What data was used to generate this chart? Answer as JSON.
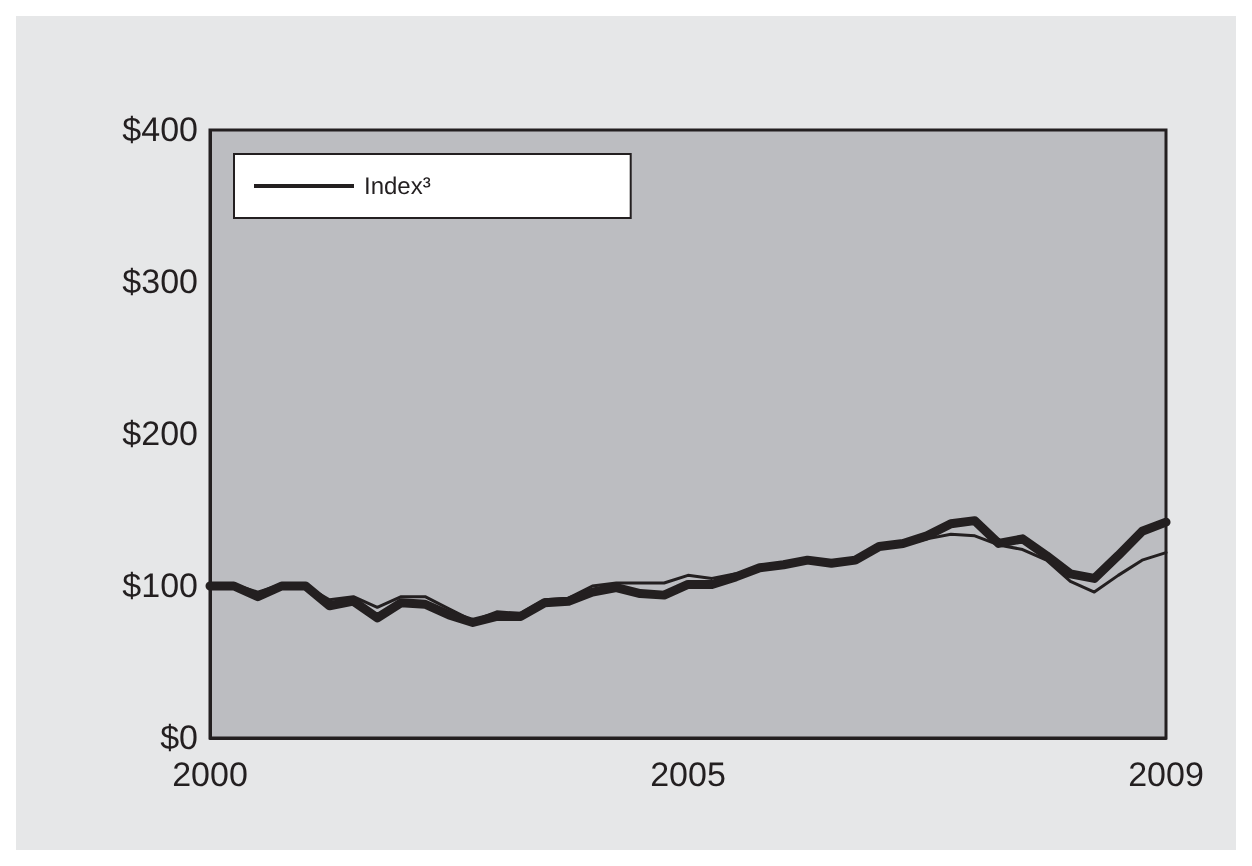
{
  "chart_data": {
    "type": "line",
    "categories": [
      "2000",
      null,
      null,
      null,
      null,
      null,
      null,
      null,
      null,
      null,
      null,
      null,
      null,
      null,
      null,
      null,
      null,
      null,
      null,
      null,
      "2005",
      null,
      null,
      null,
      null,
      null,
      null,
      null,
      null,
      null,
      null,
      null,
      null,
      null,
      null,
      null,
      null,
      null,
      null,
      null,
      "2009"
    ],
    "series": [
      {
        "color": "#231f20",
        "values": [
          100,
          100,
          93,
          100,
          100,
          87,
          90,
          79,
          89,
          88,
          81,
          76,
          80,
          80,
          89,
          90,
          96,
          99,
          95,
          94,
          101,
          101,
          106,
          112,
          114,
          117,
          115,
          117,
          126,
          128,
          133,
          141,
          143,
          128,
          131,
          120,
          108,
          105,
          120,
          136,
          142
        ]
      },
      {
        "name": "Index³",
        "color": "#231f20",
        "values": [
          100,
          101,
          96,
          101,
          100,
          91,
          93,
          86,
          93,
          93,
          85,
          77,
          83,
          82,
          91,
          92,
          100,
          102,
          102,
          102,
          107,
          105,
          108,
          112,
          114,
          117,
          115,
          118,
          125,
          127,
          131,
          134,
          133,
          127,
          124,
          117,
          103,
          96,
          107,
          117,
          122
        ]
      }
    ],
    "ylim": [
      0,
      400
    ],
    "yticks": [
      {
        "value": 0,
        "label": "$0"
      },
      {
        "value": 100,
        "label": "$100"
      },
      {
        "value": 200,
        "label": "$200"
      },
      {
        "value": 300,
        "label": "$300"
      },
      {
        "value": 400,
        "label": "$400"
      }
    ],
    "grid": false,
    "legend": "top left",
    "marker": "none",
    "line_style": "solid"
  }
}
